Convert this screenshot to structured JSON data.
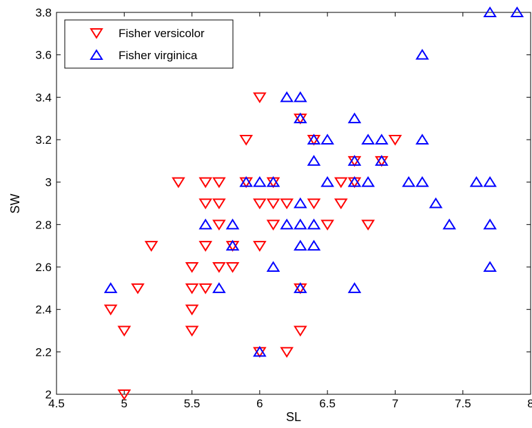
{
  "chart_data": {
    "type": "scatter",
    "title": "",
    "xlabel": "SL",
    "ylabel": "SW",
    "xlim": [
      4.5,
      8
    ],
    "ylim": [
      2,
      3.8
    ],
    "xticks": [
      "4.5",
      "5",
      "5.5",
      "6",
      "6.5",
      "7",
      "7.5",
      "8"
    ],
    "yticks": [
      "2",
      "2.2",
      "2.4",
      "2.6",
      "2.8",
      "3",
      "3.2",
      "3.4",
      "3.6",
      "3.8"
    ],
    "grid": false,
    "legend_position": "top-left",
    "series": [
      {
        "name": "Fisher versicolor",
        "marker": "triangle-down",
        "color": "#ff0000",
        "points": [
          [
            4.9,
            2.4
          ],
          [
            5.0,
            2.3
          ],
          [
            5.0,
            2.0
          ],
          [
            5.1,
            2.5
          ],
          [
            5.2,
            2.7
          ],
          [
            5.4,
            3.0
          ],
          [
            5.5,
            2.6
          ],
          [
            5.5,
            2.5
          ],
          [
            5.5,
            2.4
          ],
          [
            5.5,
            2.3
          ],
          [
            5.6,
            3.0
          ],
          [
            5.6,
            2.9
          ],
          [
            5.6,
            2.7
          ],
          [
            5.6,
            2.5
          ],
          [
            5.7,
            3.0
          ],
          [
            5.7,
            2.9
          ],
          [
            5.7,
            2.8
          ],
          [
            5.7,
            2.6
          ],
          [
            5.8,
            2.7
          ],
          [
            5.8,
            2.6
          ],
          [
            5.9,
            3.2
          ],
          [
            5.9,
            3.0
          ],
          [
            6.0,
            3.4
          ],
          [
            6.0,
            2.9
          ],
          [
            6.0,
            2.7
          ],
          [
            6.0,
            2.2
          ],
          [
            6.1,
            3.0
          ],
          [
            6.1,
            2.9
          ],
          [
            6.1,
            2.8
          ],
          [
            6.2,
            2.9
          ],
          [
            6.2,
            2.2
          ],
          [
            6.3,
            3.3
          ],
          [
            6.3,
            2.5
          ],
          [
            6.3,
            2.3
          ],
          [
            6.4,
            3.2
          ],
          [
            6.4,
            2.9
          ],
          [
            6.5,
            2.8
          ],
          [
            6.6,
            3.0
          ],
          [
            6.6,
            2.9
          ],
          [
            6.7,
            3.1
          ],
          [
            6.7,
            3.0
          ],
          [
            6.8,
            2.8
          ],
          [
            6.9,
            3.1
          ],
          [
            7.0,
            3.2
          ]
        ]
      },
      {
        "name": "Fisher virginica",
        "marker": "triangle-up",
        "color": "#0000ff",
        "points": [
          [
            4.9,
            2.5
          ],
          [
            5.6,
            2.8
          ],
          [
            5.7,
            2.5
          ],
          [
            5.8,
            2.8
          ],
          [
            5.8,
            2.7
          ],
          [
            5.9,
            3.0
          ],
          [
            6.0,
            3.0
          ],
          [
            6.0,
            2.2
          ],
          [
            6.1,
            3.0
          ],
          [
            6.1,
            2.6
          ],
          [
            6.2,
            3.4
          ],
          [
            6.2,
            2.8
          ],
          [
            6.3,
            3.4
          ],
          [
            6.3,
            3.3
          ],
          [
            6.3,
            2.9
          ],
          [
            6.3,
            2.8
          ],
          [
            6.3,
            2.7
          ],
          [
            6.3,
            2.5
          ],
          [
            6.4,
            3.2
          ],
          [
            6.4,
            3.1
          ],
          [
            6.4,
            2.8
          ],
          [
            6.4,
            2.7
          ],
          [
            6.5,
            3.2
          ],
          [
            6.5,
            3.0
          ],
          [
            6.7,
            3.3
          ],
          [
            6.7,
            3.1
          ],
          [
            6.7,
            3.0
          ],
          [
            6.7,
            2.5
          ],
          [
            6.8,
            3.2
          ],
          [
            6.8,
            3.0
          ],
          [
            6.9,
            3.2
          ],
          [
            6.9,
            3.1
          ],
          [
            7.1,
            3.0
          ],
          [
            7.2,
            3.6
          ],
          [
            7.2,
            3.2
          ],
          [
            7.2,
            3.0
          ],
          [
            7.3,
            2.9
          ],
          [
            7.4,
            2.8
          ],
          [
            7.6,
            3.0
          ],
          [
            7.7,
            3.8
          ],
          [
            7.7,
            3.0
          ],
          [
            7.7,
            2.8
          ],
          [
            7.7,
            2.6
          ],
          [
            7.9,
            3.8
          ]
        ]
      }
    ]
  }
}
